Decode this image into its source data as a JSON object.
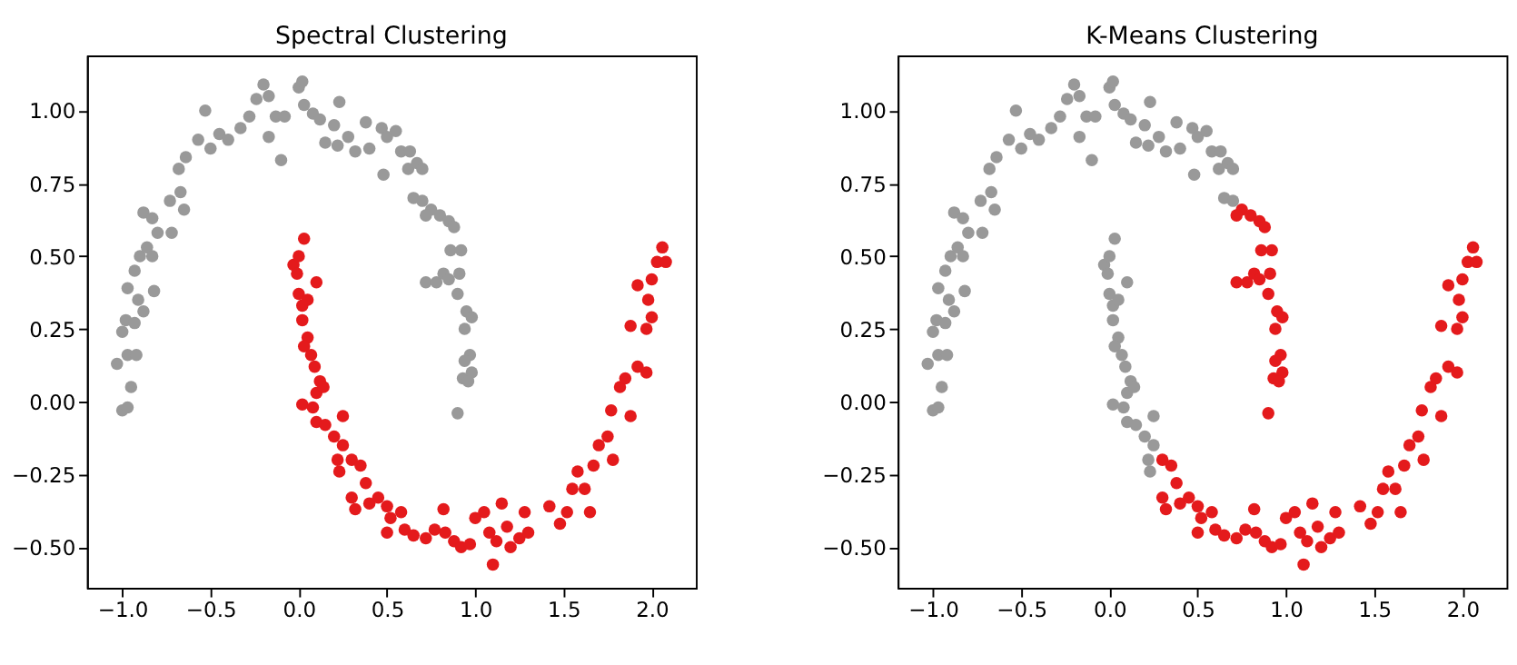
{
  "chart_data": [
    {
      "type": "scatter",
      "title": "Spectral Clustering",
      "marker": "circle",
      "grid": false,
      "legend": false,
      "xlim": [
        -1.2,
        2.25
      ],
      "ylim": [
        -0.64,
        1.19
      ],
      "xticks": [
        {
          "value": -1,
          "label": "−1.0"
        },
        {
          "value": -0.5,
          "label": "−0.5"
        },
        {
          "value": 0,
          "label": "0.0"
        },
        {
          "value": 0.5,
          "label": "0.5"
        },
        {
          "value": 1,
          "label": "1.0"
        },
        {
          "value": 1.5,
          "label": "1.5"
        },
        {
          "value": 2,
          "label": "2.0"
        }
      ],
      "yticks": [
        {
          "value": -0.5,
          "label": "−0.50"
        },
        {
          "value": -0.25,
          "label": "−0.25"
        },
        {
          "value": 0,
          "label": "0.00"
        },
        {
          "value": 0.25,
          "label": "0.25"
        },
        {
          "value": 0.5,
          "label": "0.50"
        },
        {
          "value": 0.75,
          "label": "0.75"
        },
        {
          "value": 1,
          "label": "1.00"
        }
      ],
      "series": [
        {
          "color": "#999999",
          "x": [
            -1.0,
            -0.97,
            -0.95,
            -1.03,
            -0.97,
            -0.92,
            -1.0,
            -0.98,
            -0.93,
            -0.97,
            -0.91,
            -0.88,
            -0.82,
            -0.93,
            -0.9,
            -0.86,
            -0.83,
            -0.88,
            -0.83,
            -0.8,
            -0.72,
            -0.73,
            -0.67,
            -0.65,
            -0.68,
            -0.64,
            -0.57,
            -0.53,
            -0.5,
            -0.45,
            -0.4,
            -0.33,
            -0.28,
            -0.24,
            -0.2,
            -0.17,
            -0.17,
            -0.13,
            -0.1,
            -0.08,
            0.0,
            0.02,
            0.03,
            0.08,
            0.12,
            0.15,
            0.2,
            0.23,
            0.22,
            0.28,
            0.32,
            0.38,
            0.4,
            0.47,
            0.5,
            0.48,
            0.55,
            0.58,
            0.63,
            0.62,
            0.67,
            0.7,
            0.65,
            0.7,
            0.75,
            0.72,
            0.8,
            0.85,
            0.88,
            0.86,
            0.92,
            0.72,
            0.78,
            0.82,
            0.85,
            0.91,
            0.9,
            0.95,
            0.98,
            0.94,
            0.97,
            0.94,
            0.98,
            0.93,
            0.96,
            0.9
          ],
          "values": [
            -0.03,
            -0.02,
            0.05,
            0.13,
            0.16,
            0.16,
            0.24,
            0.28,
            0.27,
            0.39,
            0.35,
            0.31,
            0.38,
            0.45,
            0.5,
            0.53,
            0.5,
            0.65,
            0.63,
            0.58,
            0.58,
            0.69,
            0.72,
            0.66,
            0.8,
            0.84,
            0.9,
            1.0,
            0.87,
            0.92,
            0.9,
            0.94,
            0.98,
            1.04,
            1.09,
            1.05,
            0.91,
            0.98,
            0.83,
            0.98,
            1.08,
            1.1,
            1.02,
            0.99,
            0.97,
            0.89,
            0.95,
            1.03,
            0.88,
            0.91,
            0.86,
            0.96,
            0.87,
            0.94,
            0.91,
            0.78,
            0.93,
            0.86,
            0.86,
            0.8,
            0.82,
            0.8,
            0.7,
            0.69,
            0.66,
            0.64,
            0.64,
            0.62,
            0.6,
            0.52,
            0.52,
            0.41,
            0.41,
            0.44,
            0.42,
            0.44,
            0.37,
            0.31,
            0.29,
            0.25,
            0.16,
            0.14,
            0.1,
            0.08,
            0.07,
            -0.04
          ]
        },
        {
          "color": "#e41a1c",
          "x": [
            -0.03,
            0.0,
            0.03,
            -0.01,
            0.0,
            0.02,
            0.1,
            0.05,
            0.02,
            0.05,
            0.03,
            0.07,
            0.09,
            0.12,
            0.1,
            0.14,
            0.02,
            0.08,
            0.1,
            0.15,
            0.25,
            0.2,
            0.25,
            0.22,
            0.23,
            0.3,
            0.35,
            0.38,
            0.3,
            0.32,
            0.4,
            0.45,
            0.5,
            0.52,
            0.5,
            0.58,
            0.6,
            0.65,
            0.72,
            0.77,
            0.82,
            0.83,
            0.88,
            0.92,
            0.97,
            1.0,
            1.05,
            1.08,
            1.1,
            1.12,
            1.15,
            1.18,
            1.2,
            1.25,
            1.28,
            1.3,
            1.42,
            1.48,
            1.52,
            1.55,
            1.58,
            1.62,
            1.65,
            1.67,
            1.7,
            1.75,
            1.78,
            1.77,
            1.82,
            1.85,
            1.88,
            1.92,
            1.97,
            1.88,
            1.97,
            2.0,
            1.92,
            1.98,
            2.0,
            2.03,
            2.08,
            2.06
          ],
          "values": [
            0.47,
            0.5,
            0.56,
            0.44,
            0.37,
            0.33,
            0.41,
            0.35,
            0.28,
            0.22,
            0.19,
            0.16,
            0.12,
            0.07,
            0.03,
            0.05,
            -0.01,
            -0.02,
            -0.07,
            -0.08,
            -0.05,
            -0.12,
            -0.15,
            -0.2,
            -0.24,
            -0.2,
            -0.22,
            -0.28,
            -0.33,
            -0.37,
            -0.35,
            -0.33,
            -0.36,
            -0.4,
            -0.45,
            -0.38,
            -0.44,
            -0.46,
            -0.47,
            -0.44,
            -0.37,
            -0.45,
            -0.48,
            -0.5,
            -0.49,
            -0.4,
            -0.38,
            -0.45,
            -0.56,
            -0.48,
            -0.35,
            -0.43,
            -0.5,
            -0.47,
            -0.38,
            -0.45,
            -0.36,
            -0.42,
            -0.38,
            -0.3,
            -0.24,
            -0.3,
            -0.38,
            -0.22,
            -0.15,
            -0.12,
            -0.2,
            -0.03,
            0.05,
            0.08,
            -0.05,
            0.12,
            0.1,
            0.26,
            0.25,
            0.29,
            0.4,
            0.35,
            0.42,
            0.48,
            0.48,
            0.53
          ]
        }
      ]
    },
    {
      "type": "scatter",
      "title": "K-Means Clustering",
      "marker": "circle",
      "grid": false,
      "legend": false,
      "xlim": [
        -1.2,
        2.25
      ],
      "ylim": [
        -0.64,
        1.19
      ],
      "xticks": [
        {
          "value": -1,
          "label": "−1.0"
        },
        {
          "value": -0.5,
          "label": "−0.5"
        },
        {
          "value": 0,
          "label": "0.0"
        },
        {
          "value": 0.5,
          "label": "0.5"
        },
        {
          "value": 1,
          "label": "1.0"
        },
        {
          "value": 1.5,
          "label": "1.5"
        },
        {
          "value": 2,
          "label": "2.0"
        }
      ],
      "yticks": [
        {
          "value": -0.5,
          "label": "−0.50"
        },
        {
          "value": -0.25,
          "label": "−0.25"
        },
        {
          "value": 0,
          "label": "0.00"
        },
        {
          "value": 0.25,
          "label": "0.25"
        },
        {
          "value": 0.5,
          "label": "0.50"
        },
        {
          "value": 0.75,
          "label": "0.75"
        },
        {
          "value": 1,
          "label": "1.00"
        }
      ],
      "series": [
        {
          "color": "#999999",
          "x": [
            -1.0,
            -0.97,
            -0.95,
            -1.03,
            -0.97,
            -0.92,
            -1.0,
            -0.98,
            -0.93,
            -0.97,
            -0.91,
            -0.88,
            -0.82,
            -0.93,
            -0.9,
            -0.86,
            -0.83,
            -0.88,
            -0.83,
            -0.8,
            -0.72,
            -0.73,
            -0.67,
            -0.65,
            -0.68,
            -0.64,
            -0.57,
            -0.53,
            -0.5,
            -0.45,
            -0.4,
            -0.33,
            -0.28,
            -0.24,
            -0.2,
            -0.17,
            -0.17,
            -0.13,
            -0.1,
            -0.08,
            0.0,
            0.02,
            0.03,
            0.08,
            0.12,
            0.15,
            0.2,
            0.23,
            0.22,
            0.28,
            0.32,
            0.38,
            0.4,
            0.47,
            0.5,
            0.48,
            0.55,
            0.58,
            0.63,
            0.62,
            0.67,
            0.7,
            0.65,
            0.7,
            -0.03,
            0.0,
            0.03,
            -0.01,
            0.0,
            0.02,
            0.1,
            0.05,
            0.02,
            0.05,
            0.03,
            0.07,
            0.09,
            0.12,
            0.1,
            0.14,
            0.02,
            0.08,
            0.1,
            0.15,
            0.25,
            0.2,
            0.25,
            0.22,
            0.23
          ],
          "values": [
            -0.03,
            -0.02,
            0.05,
            0.13,
            0.16,
            0.16,
            0.24,
            0.28,
            0.27,
            0.39,
            0.35,
            0.31,
            0.38,
            0.45,
            0.5,
            0.53,
            0.5,
            0.65,
            0.63,
            0.58,
            0.58,
            0.69,
            0.72,
            0.66,
            0.8,
            0.84,
            0.9,
            1.0,
            0.87,
            0.92,
            0.9,
            0.94,
            0.98,
            1.04,
            1.09,
            1.05,
            0.91,
            0.98,
            0.83,
            0.98,
            1.08,
            1.1,
            1.02,
            0.99,
            0.97,
            0.89,
            0.95,
            1.03,
            0.88,
            0.91,
            0.86,
            0.96,
            0.87,
            0.94,
            0.91,
            0.78,
            0.93,
            0.86,
            0.86,
            0.8,
            0.82,
            0.8,
            0.7,
            0.69,
            0.47,
            0.5,
            0.56,
            0.44,
            0.37,
            0.33,
            0.41,
            0.35,
            0.28,
            0.22,
            0.19,
            0.16,
            0.12,
            0.07,
            0.03,
            0.05,
            -0.01,
            -0.02,
            -0.07,
            -0.08,
            -0.05,
            -0.12,
            -0.15,
            -0.2,
            -0.24
          ]
        },
        {
          "color": "#e41a1c",
          "x": [
            0.75,
            0.72,
            0.8,
            0.85,
            0.88,
            0.86,
            0.92,
            0.72,
            0.78,
            0.82,
            0.85,
            0.91,
            0.9,
            0.95,
            0.98,
            0.94,
            0.97,
            0.94,
            0.98,
            0.93,
            0.96,
            0.9,
            0.3,
            0.35,
            0.38,
            0.3,
            0.32,
            0.4,
            0.45,
            0.5,
            0.52,
            0.5,
            0.58,
            0.6,
            0.65,
            0.72,
            0.77,
            0.82,
            0.83,
            0.88,
            0.92,
            0.97,
            1.0,
            1.05,
            1.08,
            1.1,
            1.12,
            1.15,
            1.18,
            1.2,
            1.25,
            1.28,
            1.3,
            1.42,
            1.48,
            1.52,
            1.55,
            1.58,
            1.62,
            1.65,
            1.67,
            1.7,
            1.75,
            1.78,
            1.77,
            1.82,
            1.85,
            1.88,
            1.92,
            1.97,
            1.88,
            1.97,
            2.0,
            1.92,
            1.98,
            2.0,
            2.03,
            2.08,
            2.06
          ],
          "values": [
            0.66,
            0.64,
            0.64,
            0.62,
            0.6,
            0.52,
            0.52,
            0.41,
            0.41,
            0.44,
            0.42,
            0.44,
            0.37,
            0.31,
            0.29,
            0.25,
            0.16,
            0.14,
            0.1,
            0.08,
            0.07,
            -0.04,
            -0.2,
            -0.22,
            -0.28,
            -0.33,
            -0.37,
            -0.35,
            -0.33,
            -0.36,
            -0.4,
            -0.45,
            -0.38,
            -0.44,
            -0.46,
            -0.47,
            -0.44,
            -0.37,
            -0.45,
            -0.48,
            -0.5,
            -0.49,
            -0.4,
            -0.38,
            -0.45,
            -0.56,
            -0.48,
            -0.35,
            -0.43,
            -0.5,
            -0.47,
            -0.38,
            -0.45,
            -0.36,
            -0.42,
            -0.38,
            -0.3,
            -0.24,
            -0.3,
            -0.38,
            -0.22,
            -0.15,
            -0.12,
            -0.2,
            -0.03,
            0.05,
            0.08,
            -0.05,
            0.12,
            0.1,
            0.26,
            0.25,
            0.29,
            0.4,
            0.35,
            0.42,
            0.48,
            0.48,
            0.53
          ]
        }
      ]
    }
  ]
}
